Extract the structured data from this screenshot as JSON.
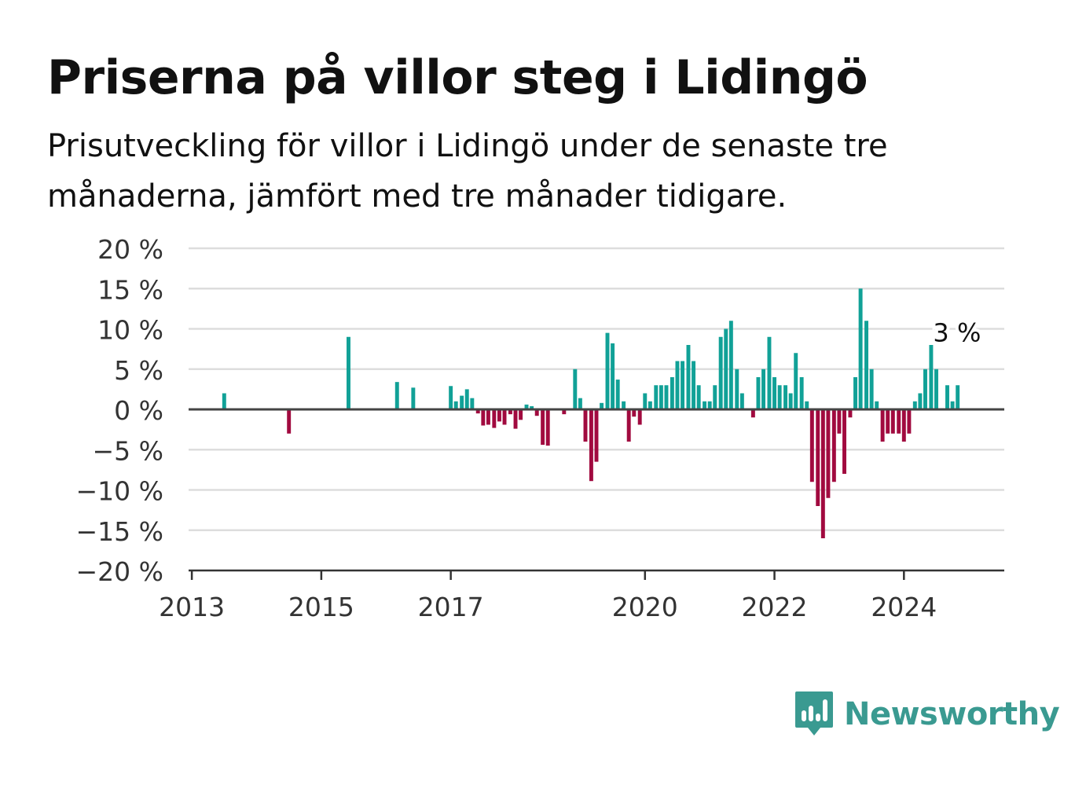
{
  "title": "Priserna på villor steg i Lidingö",
  "subtitle": "Prisutveckling för villor i Lidingö under de senaste tre månaderna, jämfört med tre månader tidigare.",
  "brand": {
    "name": "Newsworthy",
    "icon": "bar-chart-speech-bubble-icon",
    "color": "#3a9a91"
  },
  "colors": {
    "positive": "#11a197",
    "negative": "#a10a3f",
    "grid": "#dddddd",
    "axis": "#333333"
  },
  "chart_data": {
    "type": "bar",
    "title": "Priserna på villor steg i Lidingö",
    "xlabel": "",
    "ylabel": "",
    "ylim": [
      -20,
      20
    ],
    "xlim": [
      2012.95,
      2025.55
    ],
    "grid": true,
    "yticks": [
      20,
      15,
      10,
      5,
      0,
      -5,
      -10,
      -15,
      -20
    ],
    "ytick_labels": [
      "20 %",
      "15 %",
      "10 %",
      "5 %",
      "0 %",
      "−5 %",
      "−10 %",
      "−15 %",
      "−20 %"
    ],
    "xticks": [
      2013,
      2015,
      2017,
      2020,
      2022,
      2024
    ],
    "xtick_labels": [
      "2013",
      "2015",
      "2017",
      "2020",
      "2022",
      "2024"
    ],
    "annotation": {
      "text": "3 %",
      "x": 2025.5,
      "y": 3
    },
    "series": [
      {
        "points": [
          {
            "x": 2013.5,
            "y": 2.0
          },
          {
            "x": 2014.5,
            "y": -3.0
          },
          {
            "x": 2015.42,
            "y": 9.0
          },
          {
            "x": 2016.17,
            "y": 3.4
          },
          {
            "x": 2016.42,
            "y": 2.7
          },
          {
            "x": 2017.0,
            "y": 2.9
          },
          {
            "x": 2017.08,
            "y": 1.0
          },
          {
            "x": 2017.17,
            "y": 1.7
          },
          {
            "x": 2017.25,
            "y": 2.5
          },
          {
            "x": 2017.33,
            "y": 1.4
          },
          {
            "x": 2017.42,
            "y": -0.5
          },
          {
            "x": 2017.5,
            "y": -2.0
          },
          {
            "x": 2017.58,
            "y": -1.9
          },
          {
            "x": 2017.67,
            "y": -2.3
          },
          {
            "x": 2017.75,
            "y": -1.5
          },
          {
            "x": 2017.83,
            "y": -1.9
          },
          {
            "x": 2017.92,
            "y": -0.6
          },
          {
            "x": 2018.0,
            "y": -2.4
          },
          {
            "x": 2018.08,
            "y": -1.3
          },
          {
            "x": 2018.17,
            "y": 0.6
          },
          {
            "x": 2018.25,
            "y": 0.4
          },
          {
            "x": 2018.33,
            "y": -0.8
          },
          {
            "x": 2018.42,
            "y": -4.4
          },
          {
            "x": 2018.5,
            "y": -4.5
          },
          {
            "x": 2018.75,
            "y": -0.6
          },
          {
            "x": 2018.92,
            "y": 5.0
          },
          {
            "x": 2019.0,
            "y": 1.4
          },
          {
            "x": 2019.08,
            "y": -4.0
          },
          {
            "x": 2019.17,
            "y": -8.9
          },
          {
            "x": 2019.25,
            "y": -6.5
          },
          {
            "x": 2019.33,
            "y": 0.8
          },
          {
            "x": 2019.42,
            "y": 9.5
          },
          {
            "x": 2019.5,
            "y": 8.2
          },
          {
            "x": 2019.58,
            "y": 3.7
          },
          {
            "x": 2019.67,
            "y": 1.0
          },
          {
            "x": 2019.75,
            "y": -4.0
          },
          {
            "x": 2019.83,
            "y": -0.9
          },
          {
            "x": 2019.92,
            "y": -1.9
          },
          {
            "x": 2020.0,
            "y": 2.0
          },
          {
            "x": 2020.08,
            "y": 1.0
          },
          {
            "x": 2020.17,
            "y": 3.0
          },
          {
            "x": 2020.25,
            "y": 3.0
          },
          {
            "x": 2020.33,
            "y": 3.0
          },
          {
            "x": 2020.42,
            "y": 4.0
          },
          {
            "x": 2020.5,
            "y": 6.0
          },
          {
            "x": 2020.58,
            "y": 6.0
          },
          {
            "x": 2020.67,
            "y": 8.0
          },
          {
            "x": 2020.75,
            "y": 6.0
          },
          {
            "x": 2020.83,
            "y": 3.0
          },
          {
            "x": 2020.92,
            "y": 1.0
          },
          {
            "x": 2021.0,
            "y": 1.0
          },
          {
            "x": 2021.08,
            "y": 3.0
          },
          {
            "x": 2021.17,
            "y": 9.0
          },
          {
            "x": 2021.25,
            "y": 10.0
          },
          {
            "x": 2021.33,
            "y": 11.0
          },
          {
            "x": 2021.42,
            "y": 5.0
          },
          {
            "x": 2021.5,
            "y": 2.0
          },
          {
            "x": 2021.67,
            "y": -1.0
          },
          {
            "x": 2021.75,
            "y": 4.0
          },
          {
            "x": 2021.83,
            "y": 5.0
          },
          {
            "x": 2021.92,
            "y": 9.0
          },
          {
            "x": 2022.0,
            "y": 4.0
          },
          {
            "x": 2022.08,
            "y": 3.0
          },
          {
            "x": 2022.17,
            "y": 3.0
          },
          {
            "x": 2022.25,
            "y": 2.0
          },
          {
            "x": 2022.33,
            "y": 7.0
          },
          {
            "x": 2022.42,
            "y": 4.0
          },
          {
            "x": 2022.5,
            "y": 1.0
          },
          {
            "x": 2022.58,
            "y": -9.0
          },
          {
            "x": 2022.67,
            "y": -12.0
          },
          {
            "x": 2022.75,
            "y": -16.0
          },
          {
            "x": 2022.83,
            "y": -11.0
          },
          {
            "x": 2022.92,
            "y": -9.0
          },
          {
            "x": 2023.0,
            "y": -3.0
          },
          {
            "x": 2023.08,
            "y": -8.0
          },
          {
            "x": 2023.17,
            "y": -1.0
          },
          {
            "x": 2023.25,
            "y": 4.0
          },
          {
            "x": 2023.33,
            "y": 15.0
          },
          {
            "x": 2023.42,
            "y": 11.0
          },
          {
            "x": 2023.5,
            "y": 5.0
          },
          {
            "x": 2023.58,
            "y": 1.0
          },
          {
            "x": 2023.67,
            "y": -4.0
          },
          {
            "x": 2023.75,
            "y": -3.0
          },
          {
            "x": 2023.83,
            "y": -3.0
          },
          {
            "x": 2023.92,
            "y": -3.0
          },
          {
            "x": 2024.0,
            "y": -4.0
          },
          {
            "x": 2024.08,
            "y": -3.0
          },
          {
            "x": 2024.17,
            "y": 1.0
          },
          {
            "x": 2024.25,
            "y": 2.0
          },
          {
            "x": 2024.33,
            "y": 5.0
          },
          {
            "x": 2024.42,
            "y": 8.0
          },
          {
            "x": 2024.5,
            "y": 5.0
          },
          {
            "x": 2024.67,
            "y": 3.0
          },
          {
            "x": 2024.75,
            "y": 1.0
          },
          {
            "x": 2024.83,
            "y": 3.0
          }
        ]
      }
    ]
  }
}
